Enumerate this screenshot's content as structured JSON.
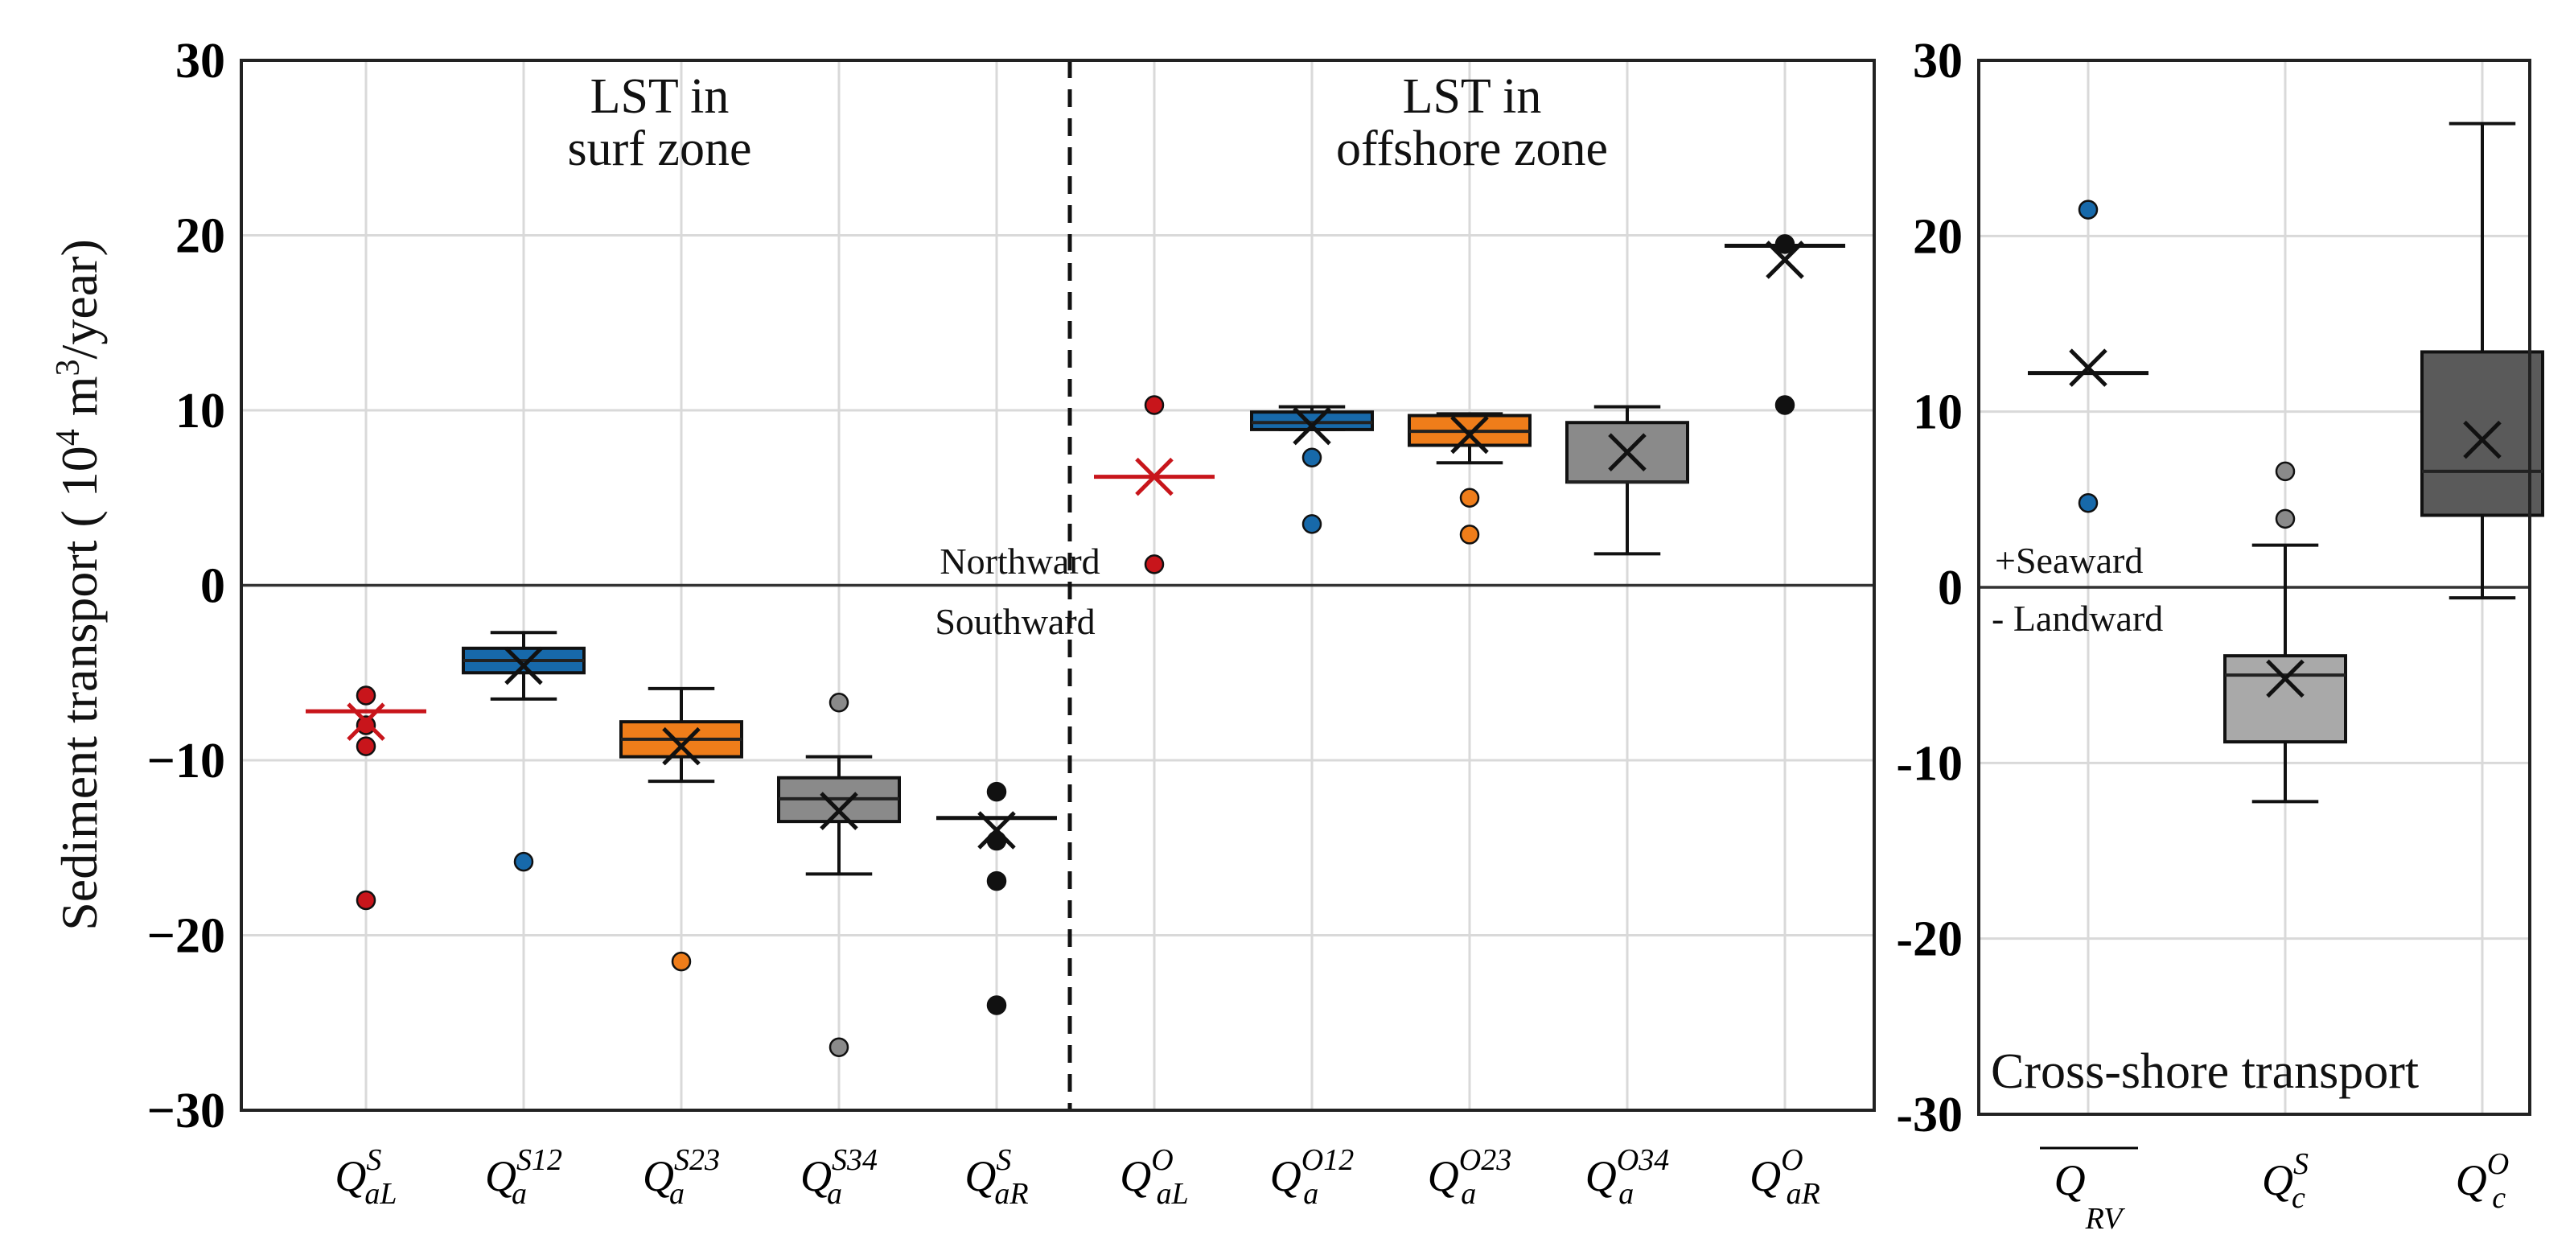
{
  "chart_data": [
    {
      "type": "box",
      "title": "",
      "ylabel": "Sediment transport ( 10⁴ m³/year)",
      "ylabel_parts": {
        "prefix": "Sediment transport ( 10",
        "exp1": "4",
        "mid": " m",
        "exp2": "3",
        "suffix": "/year)"
      },
      "ylim": [
        -30,
        30
      ],
      "yticks": [
        -30,
        -20,
        -10,
        0,
        10,
        20,
        30
      ],
      "ytick_labels": [
        "−30",
        "−20",
        "−10",
        "0",
        "10",
        "20",
        "30"
      ],
      "grid": true,
      "categories": [
        {
          "base": "Q",
          "sup": "S",
          "sub": "aL"
        },
        {
          "base": "Q",
          "sup": "S12",
          "sub": "a"
        },
        {
          "base": "Q",
          "sup": "S23",
          "sub": "a"
        },
        {
          "base": "Q",
          "sup": "S34",
          "sub": "a"
        },
        {
          "base": "Q",
          "sup": "S",
          "sub": "aR"
        },
        {
          "base": "Q",
          "sup": "O",
          "sub": "aL"
        },
        {
          "base": "Q",
          "sup": "O12",
          "sub": "a"
        },
        {
          "base": "Q",
          "sup": "O23",
          "sub": "a"
        },
        {
          "base": "Q",
          "sup": "O34",
          "sub": "a"
        },
        {
          "base": "Q",
          "sup": "O",
          "sub": "aR"
        }
      ],
      "series": [
        {
          "name": "Q_aL^S",
          "color": "#c8151b",
          "q1": -7.2,
          "median": -7.2,
          "q3": -7.2,
          "whislo": -7.2,
          "whishi": -7.2,
          "mean": -7.8,
          "fliers": [
            -6.3,
            -9.2,
            -18.0,
            -8.0
          ]
        },
        {
          "name": "Q_a^S12",
          "color": "#1769aa",
          "q1": -5.0,
          "median": -4.3,
          "q3": -3.6,
          "whislo": -6.5,
          "whishi": -2.7,
          "mean": -4.6,
          "fliers": [
            -15.8
          ]
        },
        {
          "name": "Q_a^S23",
          "color": "#ef7d1a",
          "q1": -9.8,
          "median": -8.8,
          "q3": -7.8,
          "whislo": -11.2,
          "whishi": -5.9,
          "mean": -9.2,
          "fliers": [
            -21.5
          ]
        },
        {
          "name": "Q_a^S34",
          "color": "#8a8a8a",
          "q1": -13.5,
          "median": -12.2,
          "q3": -11.0,
          "whislo": -16.5,
          "whishi": -9.8,
          "mean": -12.9,
          "fliers": [
            -6.7,
            -26.4
          ]
        },
        {
          "name": "Q_aR^S",
          "color": "#111111",
          "q1": -13.3,
          "median": -13.3,
          "q3": -13.3,
          "whislo": -13.3,
          "whishi": -13.3,
          "mean": -14.0,
          "fliers": [
            -11.8,
            -14.6,
            -16.9,
            -24.0
          ]
        },
        {
          "name": "Q_aL^O",
          "color": "#c8151b",
          "q1": 6.2,
          "median": 6.2,
          "q3": 6.2,
          "whislo": 6.2,
          "whishi": 6.2,
          "mean": 6.2,
          "fliers": [
            10.3,
            1.2
          ]
        },
        {
          "name": "Q_a^O12",
          "color": "#1769aa",
          "q1": 8.9,
          "median": 9.3,
          "q3": 9.9,
          "whislo": 8.9,
          "whishi": 10.2,
          "mean": 9.1,
          "fliers": [
            7.3,
            3.5
          ]
        },
        {
          "name": "Q_a^O23",
          "color": "#ef7d1a",
          "q1": 8.0,
          "median": 8.8,
          "q3": 9.7,
          "whislo": 7.0,
          "whishi": 9.8,
          "mean": 8.6,
          "fliers": [
            5.0,
            2.9
          ]
        },
        {
          "name": "Q_a^O34",
          "color": "#8a8a8a",
          "q1": 5.9,
          "median": 5.9,
          "q3": 9.3,
          "whislo": 1.8,
          "whishi": 10.2,
          "mean": 7.6,
          "fliers": []
        },
        {
          "name": "Q_aR^O",
          "color": "#111111",
          "q1": 19.4,
          "median": 19.4,
          "q3": 19.4,
          "whislo": 19.4,
          "whishi": 19.4,
          "mean": 18.6,
          "fliers": [
            19.5,
            10.3
          ]
        }
      ],
      "annotations": {
        "left_zone": [
          "LST in",
          "surf zone"
        ],
        "right_zone": [
          "LST in",
          "offshore zone"
        ],
        "north": "Northward",
        "south": "Southward"
      }
    },
    {
      "type": "box",
      "title": "Cross-shore transport",
      "ylim": [
        -30,
        30
      ],
      "yticks": [
        -30,
        -20,
        -10,
        0,
        10,
        20,
        30
      ],
      "ytick_labels": [
        "-30",
        "-20",
        "-10",
        "0",
        "10",
        "20",
        "30"
      ],
      "grid": true,
      "categories": [
        {
          "base": "Q",
          "sup": "",
          "sub": "RV",
          "overline": true
        },
        {
          "base": "Q",
          "sup": "S",
          "sub": "c"
        },
        {
          "base": "Q",
          "sup": "O",
          "sub": "c"
        }
      ],
      "series": [
        {
          "name": "Q_RV",
          "color": "#111111",
          "q1": 12.2,
          "median": 12.2,
          "q3": 12.2,
          "whislo": 12.2,
          "whishi": 12.2,
          "mean": 12.5,
          "fliers": [
            21.5,
            4.8
          ],
          "flier_color": "#1769aa"
        },
        {
          "name": "Q_c^S",
          "color": "#a9a9a9",
          "q1": -8.8,
          "median": -5.0,
          "q3": -3.9,
          "whislo": -12.2,
          "whishi": 2.4,
          "mean": -5.2,
          "fliers": [
            6.6,
            3.9
          ],
          "flier_color": "#8a8a8a"
        },
        {
          "name": "Q_c^O",
          "color": "#5a5a5a",
          "q1": 4.1,
          "median": 6.6,
          "q3": 13.4,
          "whislo": -0.6,
          "whishi": 26.4,
          "mean": 8.4,
          "fliers": []
        }
      ],
      "annotations": {
        "seaward": "+Seaward",
        "landward": "- Landward"
      }
    }
  ]
}
